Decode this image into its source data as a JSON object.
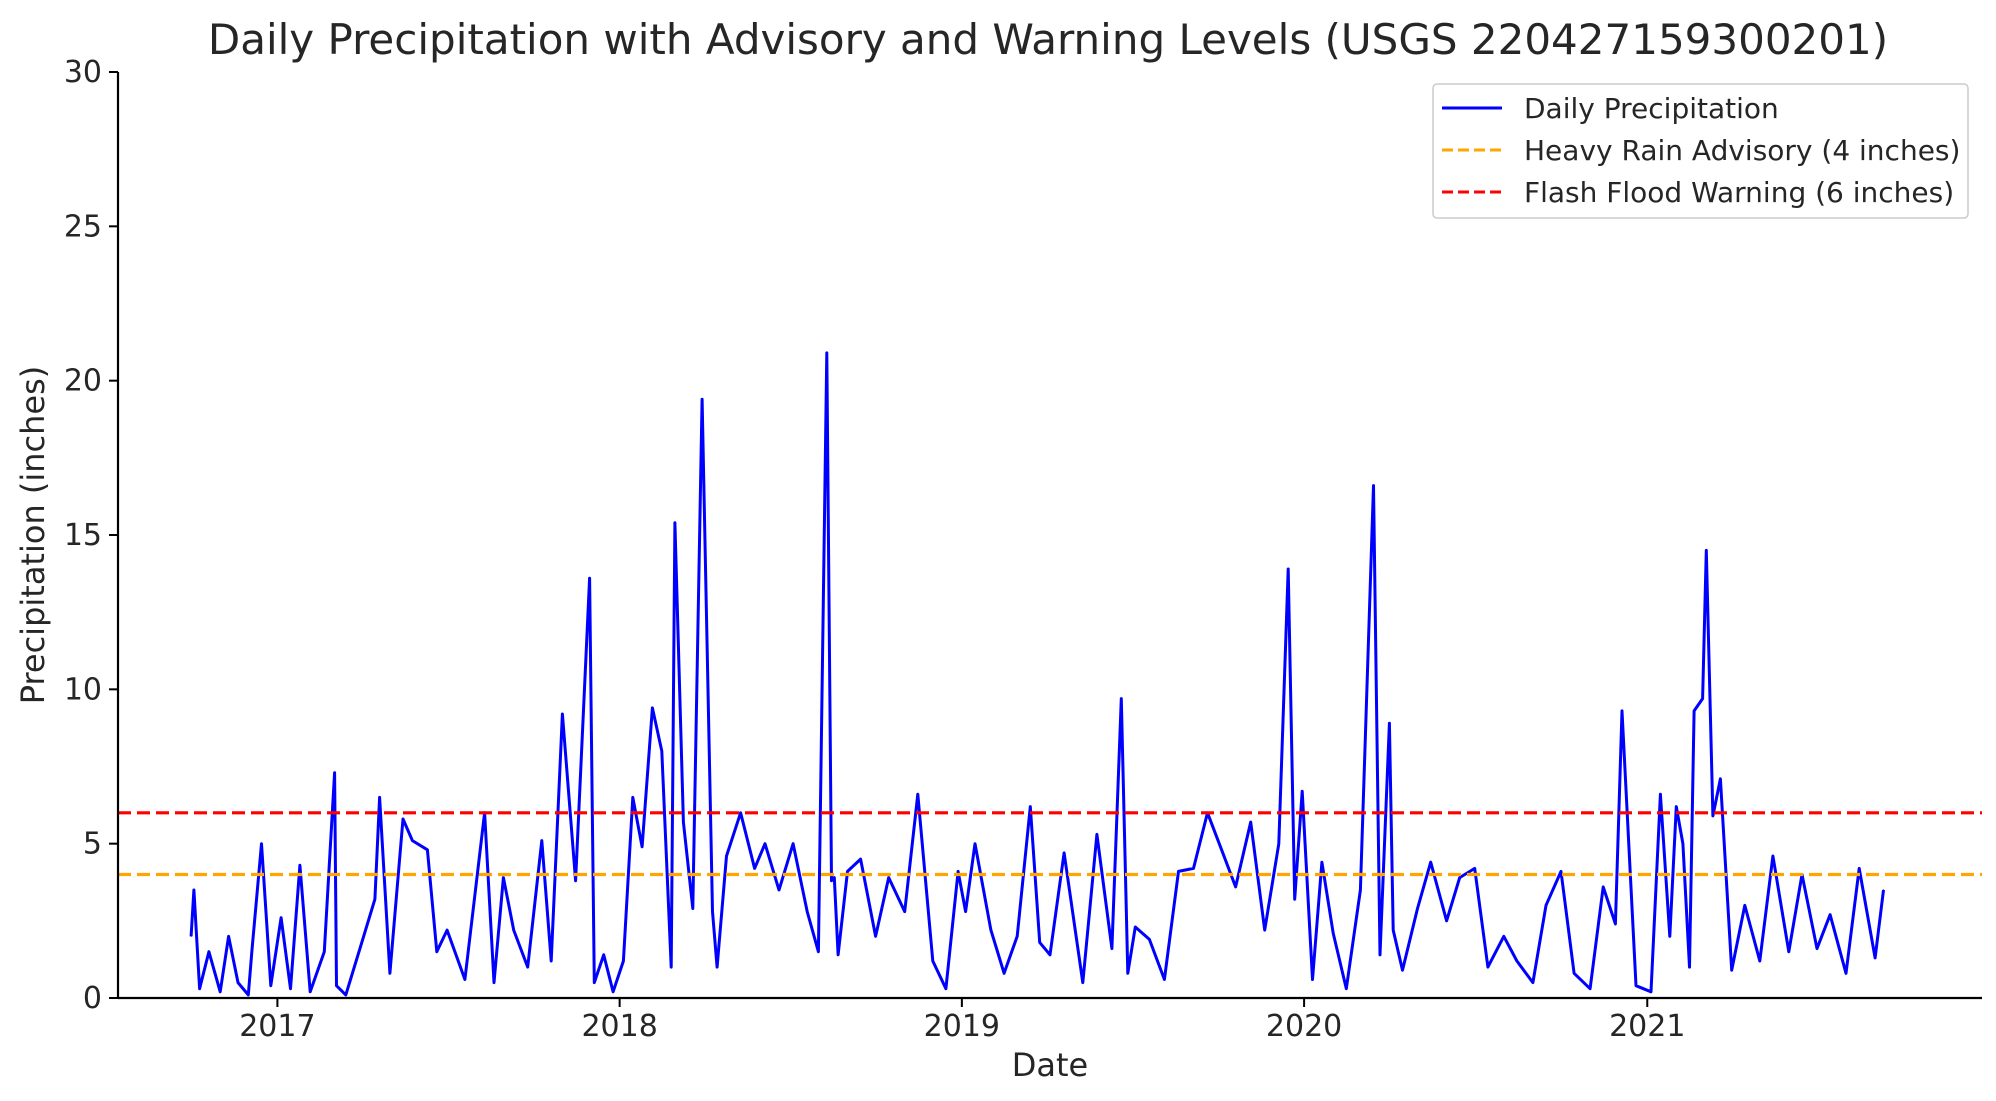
{
  "chart_data": {
    "type": "line",
    "title": "Daily Precipitation with Advisory and Warning Levels (USGS 220427159300201)",
    "xlabel": "Date",
    "ylabel": "Precipitation (inches)",
    "xlim": [
      "2016-07-15",
      "2021-12-24"
    ],
    "ylim": [
      0,
      30
    ],
    "x_ticks": [
      "2017",
      "2018",
      "2019",
      "2020",
      "2021"
    ],
    "y_ticks": [
      0,
      5,
      10,
      15,
      20,
      25,
      30
    ],
    "grid": false,
    "legend_position": "top-right",
    "series": [
      {
        "name": "Daily Precipitation",
        "color": "#0000ff",
        "style": "solid",
        "x": [
          "2016-10-01",
          "2016-10-04",
          "2016-10-10",
          "2016-10-20",
          "2016-11-01",
          "2016-11-10",
          "2016-11-20",
          "2016-12-01",
          "2016-12-05",
          "2016-12-15",
          "2016-12-25",
          "2017-01-05",
          "2017-01-15",
          "2017-01-25",
          "2017-02-05",
          "2017-02-20",
          "2017-03-03",
          "2017-03-05",
          "2017-03-15",
          "2017-04-01",
          "2017-04-15",
          "2017-04-20",
          "2017-05-01",
          "2017-05-15",
          "2017-05-25",
          "2017-06-10",
          "2017-06-20",
          "2017-07-01",
          "2017-07-20",
          "2017-08-10",
          "2017-08-20",
          "2017-08-30",
          "2017-09-10",
          "2017-09-25",
          "2017-10-10",
          "2017-10-20",
          "2017-11-01",
          "2017-11-15",
          "2017-11-30",
          "2017-12-05",
          "2017-12-15",
          "2017-12-25",
          "2018-01-05",
          "2018-01-15",
          "2018-01-25",
          "2018-02-05",
          "2018-02-15",
          "2018-02-25",
          "2018-03-01",
          "2018-03-10",
          "2018-03-20",
          "2018-03-30",
          "2018-04-10",
          "2018-04-15",
          "2018-04-25",
          "2018-05-10",
          "2018-05-25",
          "2018-06-05",
          "2018-06-20",
          "2018-07-05",
          "2018-07-20",
          "2018-08-01",
          "2018-08-10",
          "2018-08-15",
          "2018-08-18",
          "2018-08-22",
          "2018-09-01",
          "2018-09-15",
          "2018-10-01",
          "2018-10-15",
          "2018-11-01",
          "2018-11-15",
          "2018-12-01",
          "2018-12-15",
          "2018-12-28",
          "2019-01-05",
          "2019-01-15",
          "2019-02-01",
          "2019-02-15",
          "2019-03-01",
          "2019-03-15",
          "2019-03-25",
          "2019-04-05",
          "2019-04-20",
          "2019-05-10",
          "2019-05-25",
          "2019-06-10",
          "2019-06-20",
          "2019-06-27",
          "2019-07-05",
          "2019-07-20",
          "2019-08-05",
          "2019-08-20",
          "2019-09-05",
          "2019-09-20",
          "2019-10-05",
          "2019-10-20",
          "2019-11-05",
          "2019-11-20",
          "2019-12-05",
          "2019-12-15",
          "2019-12-22",
          "2019-12-30",
          "2020-01-10",
          "2020-01-20",
          "2020-02-01",
          "2020-02-15",
          "2020-03-01",
          "2020-03-15",
          "2020-03-22",
          "2020-04-01",
          "2020-04-05",
          "2020-04-15",
          "2020-05-01",
          "2020-05-15",
          "2020-06-01",
          "2020-06-15",
          "2020-07-01",
          "2020-07-15",
          "2020-08-01",
          "2020-08-15",
          "2020-09-01",
          "2020-09-15",
          "2020-10-01",
          "2020-10-15",
          "2020-11-01",
          "2020-11-15",
          "2020-11-28",
          "2020-12-05",
          "2020-12-20",
          "2021-01-05",
          "2021-01-15",
          "2021-01-25",
          "2021-02-01",
          "2021-02-08",
          "2021-02-15",
          "2021-02-20",
          "2021-03-01",
          "2021-03-05",
          "2021-03-12",
          "2021-03-20",
          "2021-04-01",
          "2021-04-15",
          "2021-05-01",
          "2021-05-15",
          "2021-06-01",
          "2021-06-15",
          "2021-07-01",
          "2021-07-15",
          "2021-08-01",
          "2021-08-15",
          "2021-09-01",
          "2021-09-10"
        ],
        "values": [
          2.0,
          3.5,
          0.3,
          1.5,
          0.2,
          2.0,
          0.5,
          0.1,
          1.6,
          5.0,
          0.4,
          2.6,
          0.3,
          4.3,
          0.2,
          1.5,
          7.3,
          0.4,
          0.1,
          1.8,
          3.2,
          6.5,
          0.8,
          5.8,
          5.1,
          4.8,
          1.5,
          2.2,
          0.6,
          6.0,
          0.5,
          3.9,
          2.2,
          1.0,
          5.1,
          1.2,
          9.2,
          3.8,
          13.6,
          0.5,
          1.4,
          0.2,
          1.2,
          6.5,
          4.9,
          9.4,
          8.0,
          1.0,
          15.4,
          5.7,
          2.9,
          19.4,
          2.8,
          1.0,
          4.6,
          6.0,
          4.2,
          5.0,
          3.5,
          5.0,
          2.8,
          1.5,
          20.9,
          3.8,
          3.9,
          1.4,
          4.1,
          4.5,
          2.0,
          3.9,
          2.8,
          6.6,
          1.2,
          0.3,
          4.1,
          2.8,
          5.0,
          2.2,
          0.8,
          2.0,
          6.2,
          1.8,
          1.4,
          4.7,
          0.5,
          5.3,
          1.6,
          9.7,
          0.8,
          2.3,
          1.9,
          0.6,
          4.1,
          4.2,
          6.0,
          4.8,
          3.6,
          5.7,
          2.2,
          5.0,
          13.9,
          3.2,
          6.7,
          0.6,
          4.4,
          2.1,
          0.3,
          3.5,
          16.6,
          1.4,
          8.9,
          2.2,
          0.9,
          2.9,
          4.4,
          2.5,
          3.9,
          4.2,
          1.0,
          2.0,
          1.2,
          0.5,
          3.0,
          4.1,
          0.8,
          0.3,
          3.6,
          2.4,
          9.3,
          0.4,
          0.2,
          6.6,
          2.0,
          6.2,
          5.0,
          1.0,
          9.3,
          9.7,
          14.5,
          5.9,
          7.1,
          0.9,
          3.0,
          1.2,
          4.6,
          1.5,
          4.0,
          1.6,
          2.7,
          0.8,
          4.2,
          1.3,
          3.5
        ]
      },
      {
        "name": "Heavy Rain Advisory (4 inches)",
        "color": "#ffa500",
        "style": "dashed",
        "constant": 4
      },
      {
        "name": "Flash Flood Warning (6 inches)",
        "color": "#ff0000",
        "style": "dashed",
        "constant": 6
      }
    ]
  }
}
